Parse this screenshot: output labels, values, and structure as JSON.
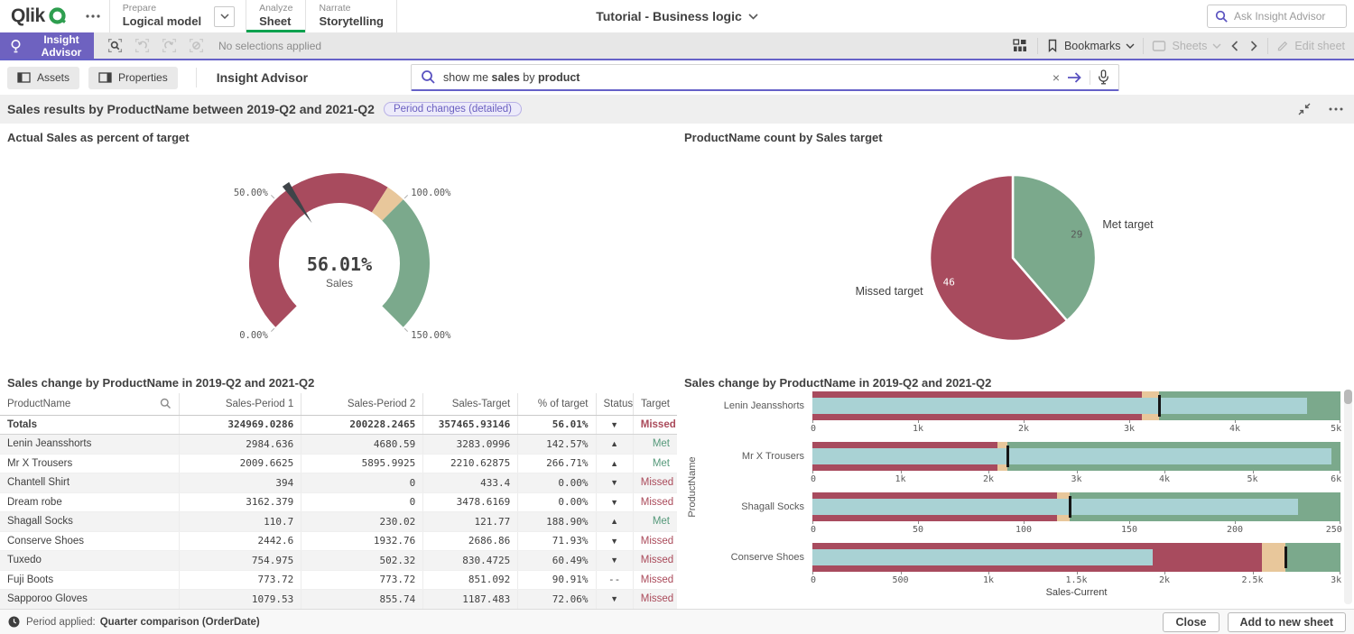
{
  "topbar": {
    "logo": "Qlik",
    "nav": [
      {
        "kicker": "Prepare",
        "label": "Logical model"
      },
      {
        "kicker": "Analyze",
        "label": "Sheet"
      },
      {
        "kicker": "Narrate",
        "label": "Storytelling"
      }
    ],
    "app_title": "Tutorial - Business logic",
    "ask_placeholder": "Ask Insight Advisor"
  },
  "selection_bar": {
    "insight_advisor": "Insight Advisor",
    "status": "No selections applied",
    "bookmarks": "Bookmarks",
    "sheets": "Sheets",
    "edit_sheet": "Edit sheet"
  },
  "toolbar": {
    "assets": "Assets",
    "properties": "Properties",
    "title": "Insight Advisor",
    "search_parts": [
      {
        "text": "show me ",
        "bold": false
      },
      {
        "text": "sales",
        "bold": true
      },
      {
        "text": " by ",
        "bold": false
      },
      {
        "text": "product",
        "bold": true
      }
    ]
  },
  "result_header": {
    "title": "Sales results by ProductName between 2019-Q2 and 2021-Q2",
    "badge": "Period changes (detailed)"
  },
  "footer": {
    "period_label": "Period applied:",
    "period_value": "Quarter comparison (OrderDate)",
    "close": "Close",
    "add_to_sheet": "Add to new sheet"
  },
  "chart_data": [
    {
      "type": "gauge",
      "title": "Actual Sales as percent of target",
      "value": 56.01,
      "value_label": "56.01%",
      "measure_label": "Sales",
      "min": 0,
      "max": 150,
      "segments": [
        {
          "to": 93,
          "color": "#a84b5e"
        },
        {
          "to": 100,
          "color": "#e8c79b"
        },
        {
          "to": 150,
          "color": "#7ba98c"
        }
      ],
      "ticks": [
        {
          "value": 0,
          "label": "0.00%"
        },
        {
          "value": 50,
          "label": "50.00%"
        },
        {
          "value": 100,
          "label": "100.00%"
        },
        {
          "value": 150,
          "label": "150.00%"
        }
      ]
    },
    {
      "type": "pie",
      "title": "ProductName count by Sales target",
      "slices": [
        {
          "label": "Met target",
          "value": 29,
          "color": "#7ba98c",
          "value_color": "#595959"
        },
        {
          "label": "Missed target",
          "value": 46,
          "color": "#a84b5e",
          "value_color": "#ffffff"
        }
      ]
    },
    {
      "type": "table",
      "title": "Sales change by ProductName in 2019-Q2 and 2021-Q2",
      "columns": [
        "ProductName",
        "Sales-Period 1",
        "Sales-Period 2",
        "Sales-Target",
        "% of target",
        "Status",
        "Target"
      ],
      "col_widths": [
        "26.5%",
        "18%",
        "18%",
        "14%",
        "11.5%",
        "5.5%",
        "6.5%"
      ],
      "status_glyphs": {
        "up": "▲",
        "down": "▼",
        "flat": "--"
      },
      "totals": {
        "name": "Totals",
        "p1": "324969.0286",
        "p2": "200228.2465",
        "target": "357465.93146",
        "pct": "56.01%",
        "status": "down",
        "result": "Missed"
      },
      "rows": [
        {
          "name": "Lenin Jeansshorts",
          "p1": "2984.636",
          "p2": "4680.59",
          "target": "3283.0996",
          "pct": "142.57%",
          "status": "up",
          "result": "Met"
        },
        {
          "name": "Mr X Trousers",
          "p1": "2009.6625",
          "p2": "5895.9925",
          "target": "2210.62875",
          "pct": "266.71%",
          "status": "up",
          "result": "Met"
        },
        {
          "name": "Chantell Shirt",
          "p1": "394",
          "p2": "0",
          "target": "433.4",
          "pct": "0.00%",
          "status": "down",
          "result": "Missed"
        },
        {
          "name": "Dream robe",
          "p1": "3162.379",
          "p2": "0",
          "target": "3478.6169",
          "pct": "0.00%",
          "status": "down",
          "result": "Missed"
        },
        {
          "name": "Shagall Socks",
          "p1": "110.7",
          "p2": "230.02",
          "target": "121.77",
          "pct": "188.90%",
          "status": "up",
          "result": "Met"
        },
        {
          "name": "Conserve Shoes",
          "p1": "2442.6",
          "p2": "1932.76",
          "target": "2686.86",
          "pct": "71.93%",
          "status": "down",
          "result": "Missed"
        },
        {
          "name": "Tuxedo",
          "p1": "754.975",
          "p2": "502.32",
          "target": "830.4725",
          "pct": "60.49%",
          "status": "down",
          "result": "Missed"
        },
        {
          "name": "Fuji Boots",
          "p1": "773.72",
          "p2": "773.72",
          "target": "851.092",
          "pct": "90.91%",
          "status": "flat",
          "result": "Missed"
        },
        {
          "name": "Sapporoo Gloves",
          "p1": "1079.53",
          "p2": "855.74",
          "target": "1187.483",
          "pct": "72.06%",
          "status": "down",
          "result": "Missed"
        }
      ]
    },
    {
      "type": "bullet",
      "title": "Sales change by ProductName in 2019-Q2 and 2021-Q2",
      "xlabel": "Sales-Current",
      "ylabel": "ProductName",
      "colors": {
        "below": "#a84b5e",
        "near": "#e8c79b",
        "above": "#7ba98c",
        "measure": "#a9d2d4",
        "marker": "#161616"
      },
      "rows": [
        {
          "label": "Lenin Jeansshorts",
          "max": 5000,
          "measure": 4680.59,
          "target": 3283.0996,
          "tick_values": [
            0,
            1000,
            2000,
            3000,
            4000,
            5000
          ],
          "tick_labels": [
            "0",
            "1k",
            "2k",
            "3k",
            "4k",
            "5k"
          ]
        },
        {
          "label": "Mr X Trousers",
          "max": 6000,
          "measure": 5895.9925,
          "target": 2210.62875,
          "tick_values": [
            0,
            1000,
            2000,
            3000,
            4000,
            5000,
            6000
          ],
          "tick_labels": [
            "0",
            "1k",
            "2k",
            "3k",
            "4k",
            "5k",
            "6k"
          ]
        },
        {
          "label": "Shagall Socks",
          "max": 250,
          "measure": 230.02,
          "target": 121.77,
          "tick_values": [
            0,
            50,
            100,
            150,
            200,
            250
          ],
          "tick_labels": [
            "0",
            "50",
            "100",
            "150",
            "200",
            "250"
          ]
        },
        {
          "label": "Conserve Shoes",
          "max": 3000,
          "measure": 1932.76,
          "target": 2686.86,
          "tick_values": [
            0,
            500,
            1000,
            1500,
            2000,
            2500,
            3000
          ],
          "tick_labels": [
            "0",
            "500",
            "1k",
            "1.5k",
            "2k",
            "2.5k",
            "3k"
          ]
        }
      ]
    }
  ]
}
